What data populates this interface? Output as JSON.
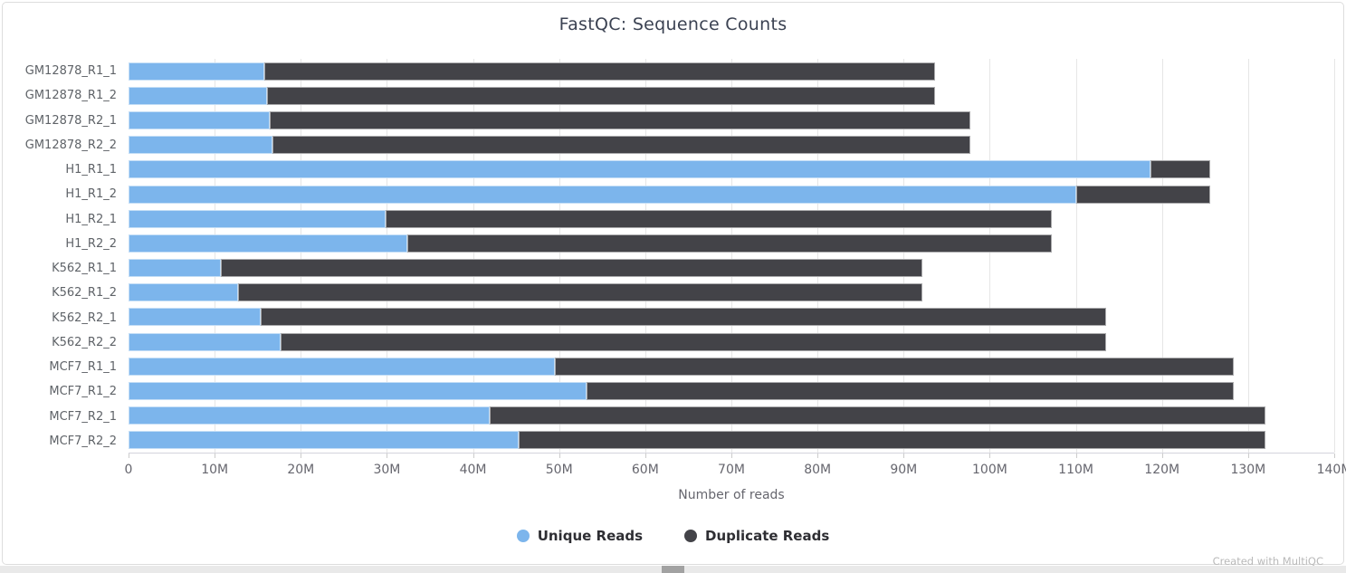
{
  "footer_credit": "Created with MultiQC",
  "chart_data": {
    "type": "bar",
    "orientation": "horizontal",
    "stacked": true,
    "title": "FastQC: Sequence Counts",
    "xlabel": "Number of reads",
    "ylabel": "",
    "unit": "millions of reads",
    "xlim_M": [
      0,
      140
    ],
    "grid": true,
    "legend_position": "bottom",
    "categories": [
      "GM12878_R1_1",
      "GM12878_R1_2",
      "GM12878_R2_1",
      "GM12878_R2_2",
      "H1_R1_1",
      "H1_R1_2",
      "H1_R2_1",
      "H1_R2_2",
      "K562_R1_1",
      "K562_R1_2",
      "K562_R2_1",
      "K562_R2_2",
      "MCF7_R1_1",
      "MCF7_R1_2",
      "MCF7_R2_1",
      "MCF7_R2_2"
    ],
    "series": [
      {
        "name": "Unique Reads",
        "color": "#7cb5ec",
        "values_M": [
          15.8,
          16.1,
          16.4,
          16.7,
          118.7,
          110.0,
          29.8,
          32.4,
          10.7,
          12.7,
          15.3,
          17.7,
          49.5,
          53.2,
          41.9,
          45.3
        ]
      },
      {
        "name": "Duplicate Reads",
        "color": "#434348",
        "values_M": [
          77.8,
          77.5,
          81.3,
          81.0,
          6.9,
          15.6,
          77.4,
          74.8,
          81.5,
          79.5,
          98.2,
          95.8,
          78.8,
          75.1,
          90.1,
          86.7
        ]
      }
    ],
    "totals_M": [
      93.6,
      93.6,
      97.7,
      97.7,
      125.6,
      125.6,
      107.2,
      107.2,
      92.2,
      92.2,
      113.5,
      113.5,
      128.3,
      128.3,
      132.0,
      132.0
    ],
    "x_tick_labels": [
      "0",
      "10M",
      "20M",
      "30M",
      "40M",
      "50M",
      "60M",
      "70M",
      "80M",
      "90M",
      "100M",
      "110M",
      "120M",
      "130M",
      "140M"
    ],
    "x_tick_values_M": [
      0,
      10,
      20,
      30,
      40,
      50,
      60,
      70,
      80,
      90,
      100,
      110,
      120,
      130,
      140
    ],
    "grid_color": "#e6e6e6"
  }
}
